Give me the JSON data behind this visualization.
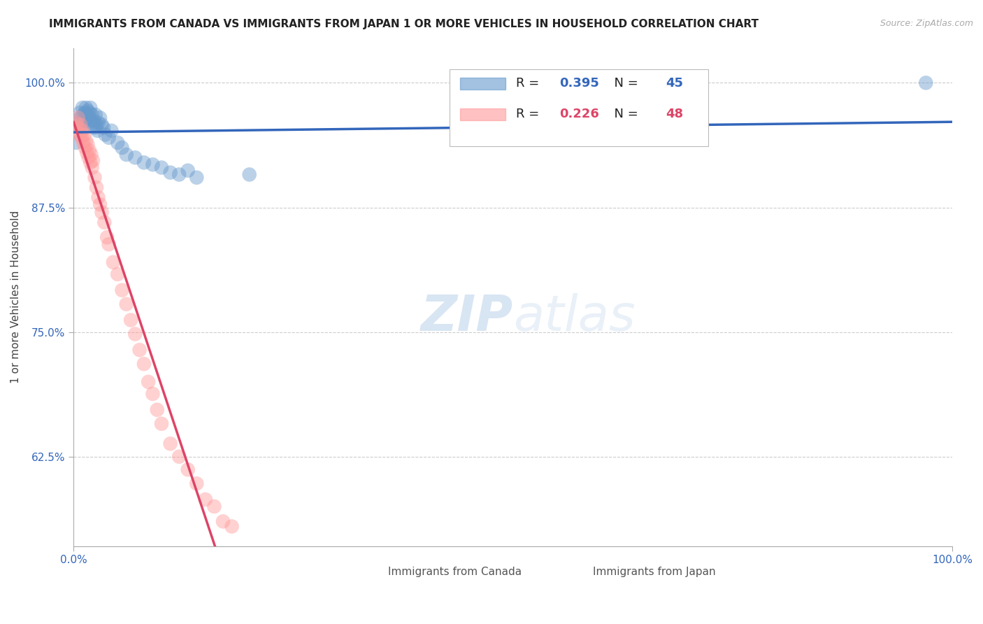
{
  "title": "IMMIGRANTS FROM CANADA VS IMMIGRANTS FROM JAPAN 1 OR MORE VEHICLES IN HOUSEHOLD CORRELATION CHART",
  "source": "Source: ZipAtlas.com",
  "ylabel": "1 or more Vehicles in Household",
  "xlim": [
    0.0,
    1.0
  ],
  "ylim": [
    0.535,
    1.035
  ],
  "yticks": [
    0.625,
    0.75,
    0.875,
    1.0
  ],
  "ytick_labels": [
    "62.5%",
    "75.0%",
    "87.5%",
    "100.0%"
  ],
  "xticks": [
    0.0,
    1.0
  ],
  "xtick_labels": [
    "0.0%",
    "100.0%"
  ],
  "canada_color": "#6699CC",
  "japan_color": "#FF9999",
  "canada_line_color": "#3366BB",
  "japan_line_color": "#DD4466",
  "canada_R": 0.395,
  "canada_N": 45,
  "japan_R": 0.226,
  "japan_N": 48,
  "canada_x": [
    0.003,
    0.005,
    0.006,
    0.007,
    0.008,
    0.009,
    0.01,
    0.011,
    0.012,
    0.013,
    0.013,
    0.014,
    0.015,
    0.016,
    0.017,
    0.018,
    0.019,
    0.02,
    0.021,
    0.022,
    0.023,
    0.024,
    0.025,
    0.026,
    0.027,
    0.028,
    0.03,
    0.032,
    0.034,
    0.036,
    0.04,
    0.043,
    0.05,
    0.055,
    0.06,
    0.07,
    0.08,
    0.09,
    0.1,
    0.11,
    0.12,
    0.13,
    0.14,
    0.2,
    0.97
  ],
  "canada_y": [
    0.94,
    0.96,
    0.955,
    0.97,
    0.965,
    0.958,
    0.975,
    0.968,
    0.962,
    0.97,
    0.958,
    0.975,
    0.968,
    0.972,
    0.965,
    0.97,
    0.975,
    0.962,
    0.968,
    0.958,
    0.962,
    0.955,
    0.968,
    0.958,
    0.952,
    0.96,
    0.965,
    0.958,
    0.955,
    0.948,
    0.945,
    0.952,
    0.94,
    0.935,
    0.928,
    0.925,
    0.92,
    0.918,
    0.915,
    0.91,
    0.908,
    0.912,
    0.905,
    0.908,
    1.0
  ],
  "japan_x": [
    0.003,
    0.004,
    0.005,
    0.006,
    0.007,
    0.008,
    0.009,
    0.01,
    0.011,
    0.012,
    0.013,
    0.014,
    0.015,
    0.016,
    0.017,
    0.018,
    0.019,
    0.02,
    0.021,
    0.022,
    0.024,
    0.026,
    0.028,
    0.03,
    0.032,
    0.035,
    0.038,
    0.04,
    0.045,
    0.05,
    0.055,
    0.06,
    0.065,
    0.07,
    0.075,
    0.08,
    0.085,
    0.09,
    0.095,
    0.1,
    0.11,
    0.12,
    0.13,
    0.14,
    0.15,
    0.16,
    0.17,
    0.18
  ],
  "japan_y": [
    0.96,
    0.952,
    0.965,
    0.955,
    0.948,
    0.958,
    0.945,
    0.952,
    0.94,
    0.948,
    0.935,
    0.942,
    0.93,
    0.938,
    0.925,
    0.932,
    0.92,
    0.928,
    0.915,
    0.922,
    0.905,
    0.895,
    0.885,
    0.878,
    0.87,
    0.86,
    0.845,
    0.838,
    0.82,
    0.808,
    0.792,
    0.778,
    0.762,
    0.748,
    0.732,
    0.718,
    0.7,
    0.688,
    0.672,
    0.658,
    0.638,
    0.625,
    0.612,
    0.598,
    0.582,
    0.575,
    0.56,
    0.555
  ],
  "background_color": "#FFFFFF",
  "grid_color": "#CCCCCC",
  "watermark_color": "#DDEEFF",
  "title_fontsize": 11,
  "axis_label_fontsize": 11,
  "tick_fontsize": 11
}
